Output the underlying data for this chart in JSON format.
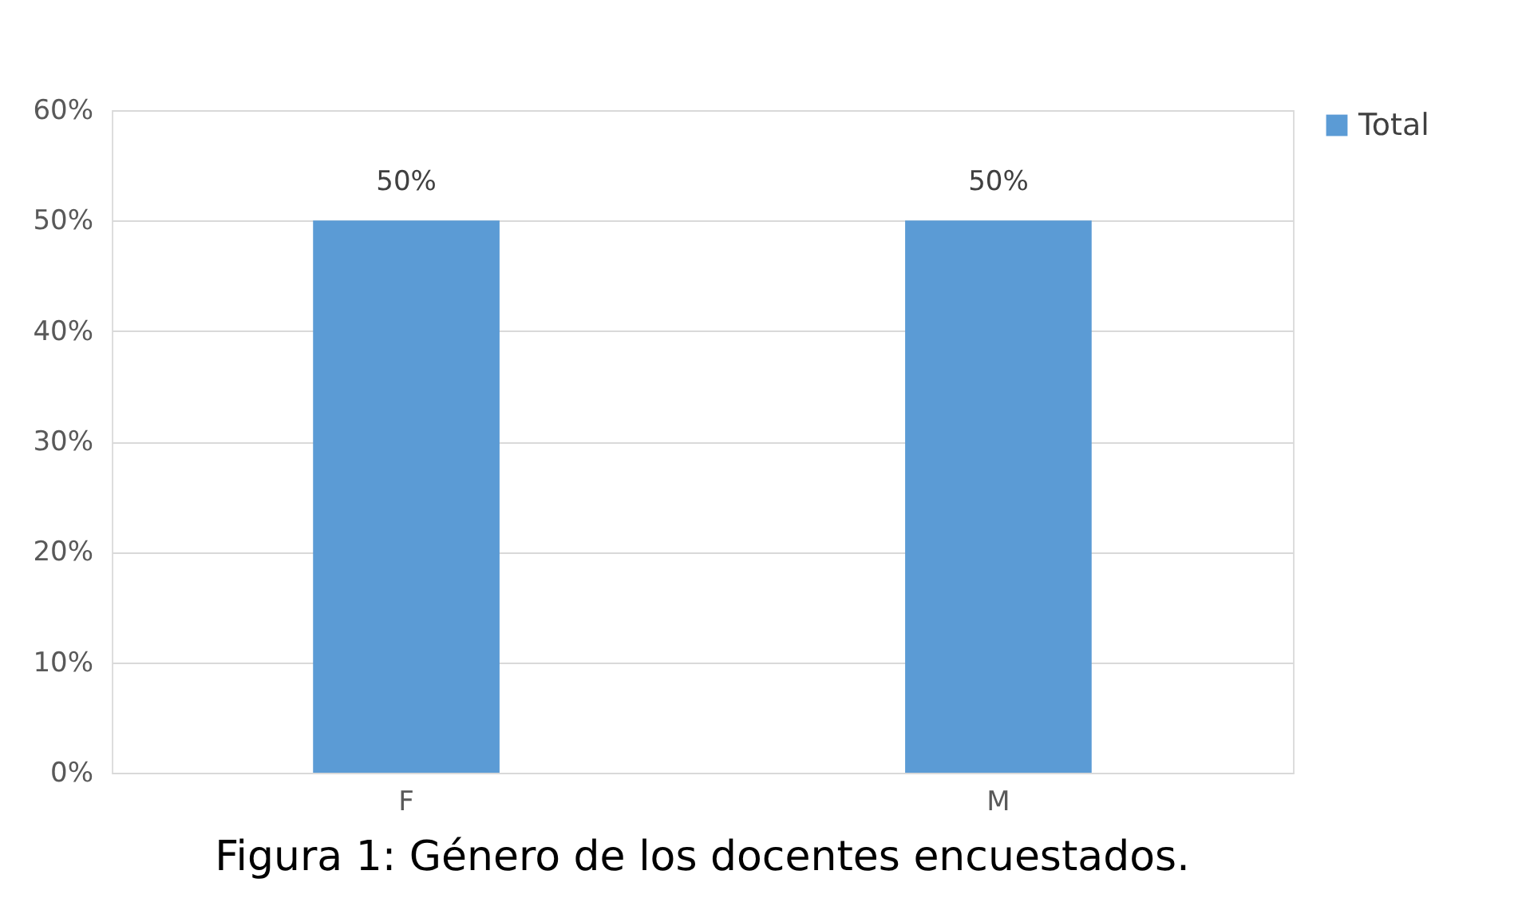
{
  "chart_data": {
    "type": "bar",
    "categories": [
      "F",
      "M"
    ],
    "series": [
      {
        "name": "Total",
        "color": "#5b9bd5",
        "values": [
          50,
          50
        ],
        "value_labels": [
          "50%",
          "50%"
        ]
      }
    ],
    "ylim": [
      0,
      60
    ],
    "yticks": [
      {
        "value": 0,
        "label": "0%"
      },
      {
        "value": 10,
        "label": "10%"
      },
      {
        "value": 20,
        "label": "20%"
      },
      {
        "value": 30,
        "label": "30%"
      },
      {
        "value": 40,
        "label": "40%"
      },
      {
        "value": 50,
        "label": "50%"
      },
      {
        "value": 60,
        "label": "60%"
      }
    ],
    "grid": "y",
    "legend": "right",
    "annotations": [
      "Figura 1: Género de los docentes encuestados."
    ]
  }
}
